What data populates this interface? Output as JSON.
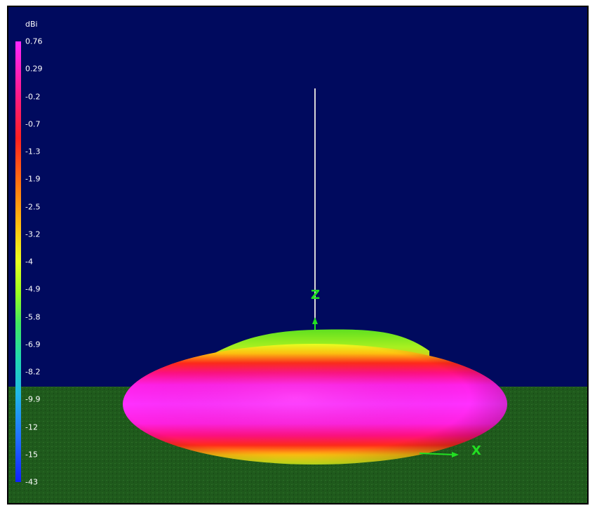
{
  "legend": {
    "unit": "dBi",
    "ticks": [
      "0.76",
      "0.29",
      "-0.2",
      "-0.7",
      "-1.3",
      "-1.9",
      "-2.5",
      "-3.2",
      "-4",
      "-4.9",
      "-5.8",
      "-6.9",
      "-8.2",
      "-9.9",
      "-12",
      "-15",
      "-43"
    ]
  },
  "axes": {
    "z_label": "Z",
    "x_label": "X"
  },
  "colors": {
    "background": "#000a5e",
    "ground": "#1f5a1c",
    "axis": "#22e022",
    "mast": "#d8d8d8"
  }
}
